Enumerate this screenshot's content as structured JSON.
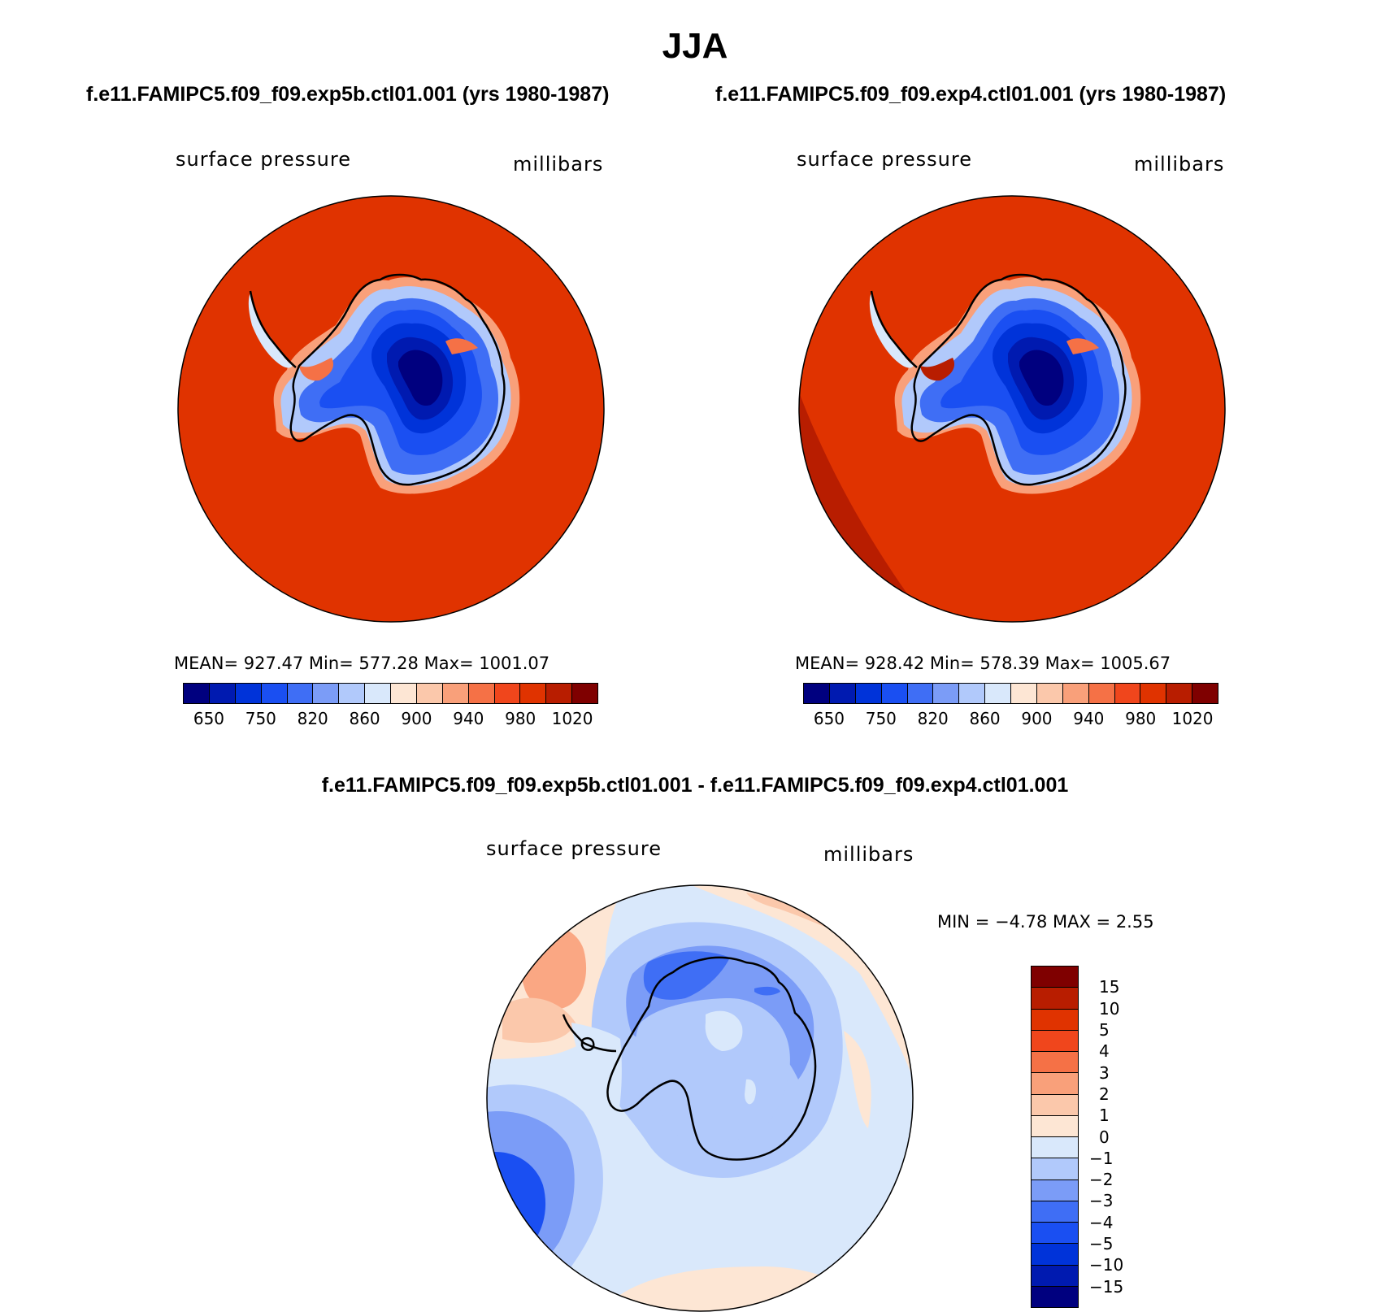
{
  "title": "JJA",
  "subtitles": {
    "left": "f.e11.FAMIPC5.f09_f09.exp5b.ctl01.001 (yrs 1980-1987)",
    "right": "f.e11.FAMIPC5.f09_f09.exp4.ctl01.001 (yrs 1980-1987)",
    "diff": "f.e11.FAMIPC5.f09_f09.exp5b.ctl01.001 - f.e11.FAMIPC5.f09_f09.exp4.ctl01.001"
  },
  "panels": [
    {
      "variable": "surface pressure",
      "units": "millibars",
      "stats": "MEAN= 927.47   Min= 577.28   Max= 1001.07",
      "mean": 927.47,
      "min": 577.28,
      "max": 1001.07
    },
    {
      "variable": "surface pressure",
      "units": "millibars",
      "stats": "MEAN= 928.42   Min= 578.39   Max= 1005.67",
      "mean": 928.42,
      "min": 578.39,
      "max": 1005.67
    }
  ],
  "diff_panel": {
    "variable": "surface pressure",
    "units": "millibars",
    "stats": "MIN =   −4.78 MAX =    2.55",
    "min": -4.78,
    "max": 2.55
  },
  "colorbar_abs": {
    "colors": [
      "#00007f",
      "#001ab0",
      "#0033d9",
      "#1a4ff2",
      "#3f6ef5",
      "#7b9cf7",
      "#b1c9fb",
      "#d9e8fb",
      "#fde6d4",
      "#fbc8ab",
      "#f9a07a",
      "#f57146",
      "#f0461c",
      "#e03300",
      "#b81d00",
      "#7f0000"
    ],
    "ticks": [
      "650",
      "750",
      "820",
      "860",
      "900",
      "940",
      "980",
      "1020"
    ]
  },
  "colorbar_diff": {
    "colors": [
      "#7f0000",
      "#b81d00",
      "#e03300",
      "#f0461c",
      "#f57146",
      "#f9a07a",
      "#fbc8ab",
      "#fde6d4",
      "#d9e8fb",
      "#b1c9fb",
      "#7b9cf7",
      "#3f6ef5",
      "#1a4ff2",
      "#0033d9",
      "#001ab0",
      "#00007f"
    ],
    "ticks": [
      "15",
      "10",
      "5",
      "4",
      "3",
      "2",
      "1",
      "0",
      "−1",
      "−2",
      "−3",
      "−4",
      "−5",
      "−10",
      "−15"
    ]
  },
  "colors": {
    "ocean_fill": "#e03300",
    "ocean_dark": "#b81d00",
    "coastline": "#000000"
  }
}
